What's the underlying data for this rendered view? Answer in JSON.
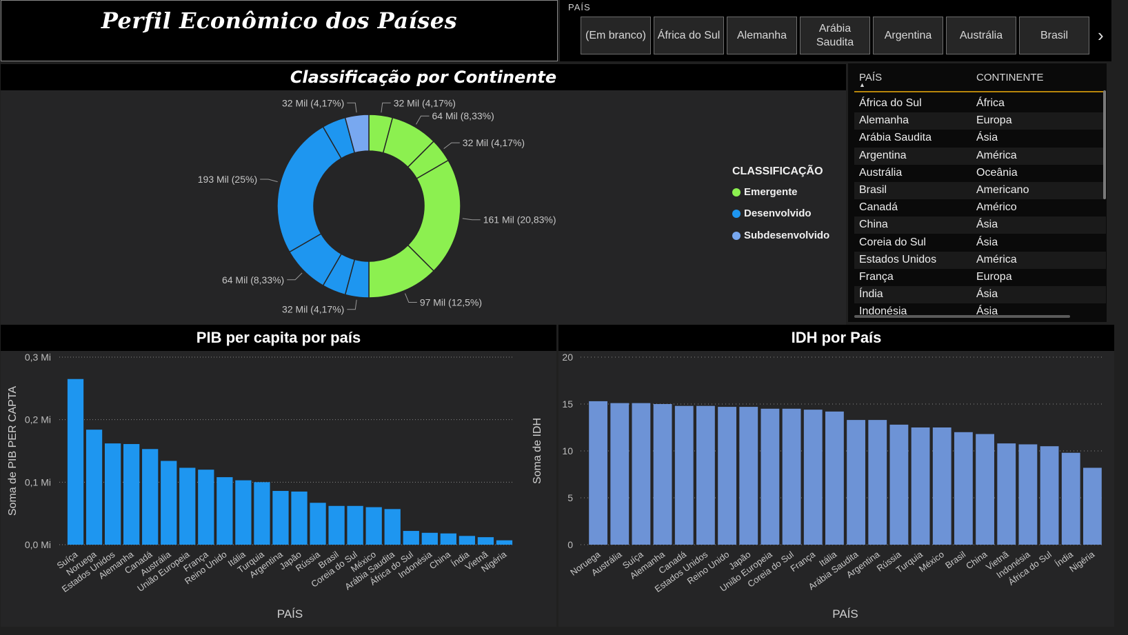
{
  "title": "Perfil Econômico dos Países",
  "slicer": {
    "label": "PAÍS",
    "buttons": [
      "(Em branco)",
      "África do Sul",
      "Alemanha",
      "Arábia Saudita",
      "Argentina",
      "Austrália",
      "Brasil"
    ],
    "next_icon": "chevron-right-icon"
  },
  "sections": {
    "donut_title": "Classificação por Continente",
    "pib_title": "PIB per capita por país",
    "idh_title": "IDH por País"
  },
  "table": {
    "col1": "PAÍS",
    "col2": "CONTINENTE",
    "rows": [
      [
        "África do Sul",
        "África"
      ],
      [
        "Alemanha",
        "Europa"
      ],
      [
        "Arábia Saudita",
        "Ásia"
      ],
      [
        "Argentina",
        "América"
      ],
      [
        "Austrália",
        "Oceânia"
      ],
      [
        "Brasil",
        "Americano"
      ],
      [
        "Canadá",
        "Américo"
      ],
      [
        "China",
        "Ásia"
      ],
      [
        "Coreia do Sul",
        "Ásia"
      ],
      [
        "Estados Unidos",
        "América"
      ],
      [
        "França",
        "Europa"
      ],
      [
        "Índia",
        "Ásia"
      ],
      [
        "Indonésia",
        "Ásia"
      ]
    ]
  },
  "legend": {
    "title": "CLASSIFICAÇÃO",
    "items": [
      {
        "label": "Emergente",
        "color": "#8cf050"
      },
      {
        "label": "Desenvolvido",
        "color": "#1e96f0"
      },
      {
        "label": "Subdesenvolvido",
        "color": "#78a8f0"
      }
    ]
  },
  "chart_data": [
    {
      "type": "pie",
      "title": "Classificação por Continente",
      "slices": [
        {
          "label": "32 Mil (4,17%)",
          "value": 4.17,
          "color": "#8cf050"
        },
        {
          "label": "64 Mil (8,33%)",
          "value": 8.33,
          "color": "#8cf050"
        },
        {
          "label": "32 Mil (4,17%)",
          "value": 4.17,
          "color": "#8cf050"
        },
        {
          "label": "161 Mil (20,83%)",
          "value": 20.83,
          "color": "#8cf050"
        },
        {
          "label": "97 Mil (12,5%)",
          "value": 12.5,
          "color": "#8cf050"
        },
        {
          "label": "32 Mil (4,17%)",
          "value": 4.17,
          "color": "#1e96f0"
        },
        {
          "label": "",
          "value": 4.17,
          "color": "#1e96f0"
        },
        {
          "label": "64 Mil (8,33%)",
          "value": 8.33,
          "color": "#1e96f0"
        },
        {
          "label": "193 Mil (25%)",
          "value": 25,
          "color": "#1e96f0"
        },
        {
          "label": "",
          "value": 4.17,
          "color": "#1e96f0"
        },
        {
          "label": "32 Mil (4,17%)",
          "value": 4.17,
          "color": "#78a8f0"
        }
      ]
    },
    {
      "type": "bar",
      "title": "PIB per capita por país",
      "xlabel": "PAÍS",
      "ylabel": "Soma de PIB PER CAPTA",
      "ylim": [
        0,
        0.3
      ],
      "yticks": [
        "0,0 Mi",
        "0,1 Mi",
        "0,2 Mi",
        "0,3 Mi"
      ],
      "color": "#1e96f0",
      "categories": [
        "Suíça",
        "Noruega",
        "Estados Unidos",
        "Alemanha",
        "Canadá",
        "Austrália",
        "União Europeia",
        "França",
        "Reino Unido",
        "Itália",
        "Turquia",
        "Argentina",
        "Japão",
        "Rússia",
        "Brasil",
        "Coreia do Sul",
        "México",
        "Arábia Saudita",
        "África do Sul",
        "Indonésia",
        "China",
        "Índia",
        "Vietnã",
        "Nigéria"
      ],
      "values": [
        0.265,
        0.184,
        0.162,
        0.161,
        0.153,
        0.134,
        0.123,
        0.12,
        0.108,
        0.103,
        0.1,
        0.086,
        0.085,
        0.067,
        0.062,
        0.062,
        0.06,
        0.057,
        0.022,
        0.019,
        0.018,
        0.014,
        0.012,
        0.007
      ]
    },
    {
      "type": "bar",
      "title": "IDH por País",
      "xlabel": "PAÍS",
      "ylabel": "Soma de IDH",
      "ylim": [
        0,
        20
      ],
      "yticks": [
        "0",
        "5",
        "10",
        "15",
        "20"
      ],
      "color": "#6d93d6",
      "categories": [
        "Noruega",
        "Austrália",
        "Suíça",
        "Alemanha",
        "Canadá",
        "Estados Unidos",
        "Reino Unido",
        "Japão",
        "União Europeia",
        "Coreia do Sul",
        "França",
        "Itália",
        "Arábia Saudita",
        "Argentina",
        "Rússia",
        "Turquia",
        "México",
        "Brasil",
        "China",
        "Vietnã",
        "Indonésia",
        "África do Sul",
        "Índia",
        "Nigéria"
      ],
      "values": [
        15.3,
        15.1,
        15.1,
        15.0,
        14.8,
        14.8,
        14.7,
        14.7,
        14.5,
        14.5,
        14.4,
        14.2,
        13.3,
        13.3,
        12.8,
        12.5,
        12.5,
        12.0,
        11.8,
        10.8,
        10.7,
        10.5,
        9.8,
        8.2
      ]
    }
  ]
}
